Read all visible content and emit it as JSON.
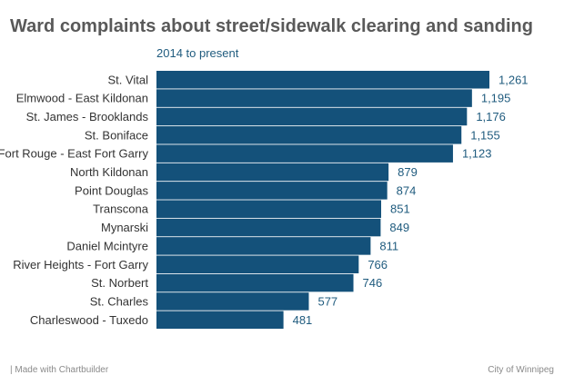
{
  "chart_data": {
    "type": "bar",
    "orientation": "horizontal",
    "title": "Ward complaints about street/sidewalk clearing and sanding",
    "subtitle": "2014 to present",
    "categories": [
      "St. Vital",
      "Elmwood - East Kildonan",
      "St. James - Brooklands",
      "St. Boniface",
      "Fort Rouge - East Fort Garry",
      "North Kildonan",
      "Point Douglas",
      "Transcona",
      "Mynarski",
      "Daniel Mcintyre",
      "River Heights - Fort Garry",
      "St. Norbert",
      "St. Charles",
      "Charleswood - Tuxedo"
    ],
    "values": [
      1261,
      1195,
      1176,
      1155,
      1123,
      879,
      874,
      851,
      849,
      811,
      766,
      746,
      577,
      481
    ],
    "value_labels": [
      "1,261",
      "1,195",
      "1,176",
      "1,155",
      "1,123",
      "879",
      "874",
      "851",
      "849",
      "811",
      "766",
      "746",
      "577",
      "481"
    ],
    "xlim": [
      0,
      1261
    ],
    "xlabel": "",
    "ylabel": "",
    "grid": false,
    "legend": "none",
    "bar_color": "#14517a",
    "label_color": "#1f5b7e",
    "category_color": "#333333"
  },
  "footer": {
    "credit": "| Made with Chartbuilder",
    "source": "City of Winnipeg"
  }
}
